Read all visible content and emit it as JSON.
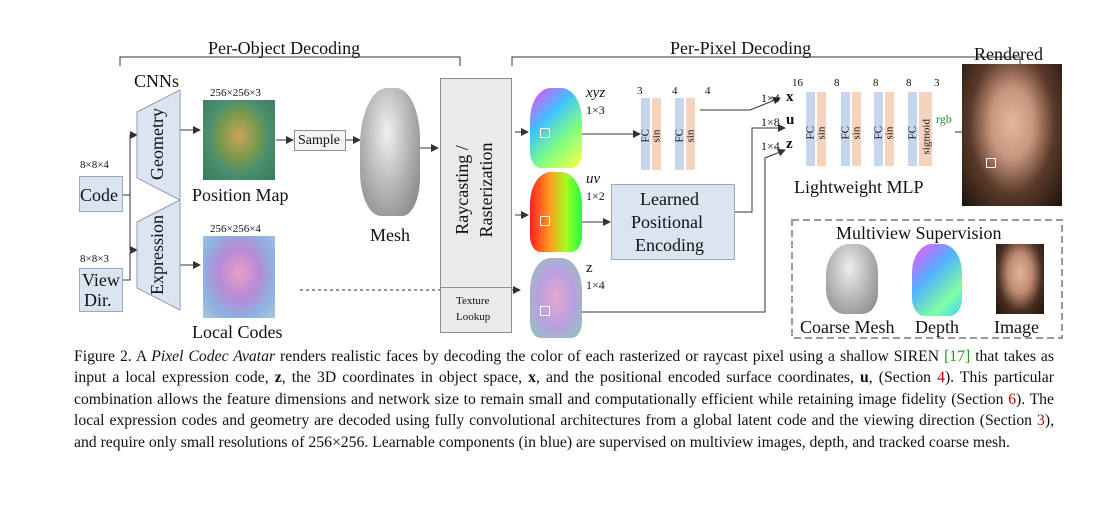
{
  "section_labels": {
    "per_object": "Per-Object Decoding",
    "per_pixel": "Per-Pixel Decoding",
    "rendered": "Rendered"
  },
  "left": {
    "cnns": "CNNs",
    "code_dim": "8×8×4",
    "code": "Code",
    "viewdir_dim": "8×8×3",
    "viewdir_line1": "View",
    "viewdir_line2": "Dir.",
    "geometry": "Geometry",
    "expression": "Expression",
    "posmap_dim": "256×256×3",
    "posmap": "Position Map",
    "localcodes_dim": "256×256×4",
    "localcodes": "Local Codes",
    "sample": "Sample",
    "mesh": "Mesh"
  },
  "raster": {
    "line1": "Raycasting /",
    "line2": "Rasterization",
    "tex1": "Texture",
    "tex2": "Lookup"
  },
  "pixel": {
    "xyz": "xyz",
    "xyz_dim": "1×3",
    "uv": "uv",
    "uv_dim": "1×2",
    "z": "z",
    "z_dim": "1×4",
    "lpe_line1": "Learned",
    "lpe_line2": "Positional",
    "lpe_line3": "Encoding"
  },
  "mlp": {
    "small_dims": [
      "3",
      "4",
      "4"
    ],
    "big_dims": [
      "16",
      "8",
      "8",
      "8",
      "3"
    ],
    "fc": "FC",
    "sin": "sin",
    "sigmoid": "sigmoid",
    "rgb": "rgb",
    "in_x_dim": "1×4",
    "in_x": "x",
    "in_u_dim": "1×8",
    "in_u": "u",
    "in_z_dim": "1×4",
    "in_z": "z",
    "title": "Lightweight MLP"
  },
  "supervision": {
    "title": "Multiview Supervision",
    "coarse": "Coarse Mesh",
    "depth": "Depth",
    "image": "Image"
  },
  "caption": {
    "fig": "Figure 2. A ",
    "pca": "Pixel Codec Avatar",
    "t1": " renders realistic faces by decoding the color of each rasterized or raycast pixel using a shallow SIREN ",
    "ref17": "[17]",
    "t2": " that takes as input a local expression code, ",
    "bz": "z",
    "t3": ", the 3D coordinates in object space, ",
    "bx": "x",
    "t4": ", and the positional encoded surface coordinates, ",
    "bu": "u",
    "t5": ", (Section ",
    "s4": "4",
    "t6": "). This particular combination allows the feature dimensions and network size to remain small and computationally efficient while retaining image fidelity (Section ",
    "s6": "6",
    "t7": "). The local expression codes and geometry are decoded using fully convolutional architectures from a global latent code and the viewing direction (Section ",
    "s3": "3",
    "t8": "), and require only small resolutions of ",
    "res": "256×256",
    "t9": ". Learnable components (in blue) are supervised on multiview images, depth, and tracked coarse mesh."
  }
}
